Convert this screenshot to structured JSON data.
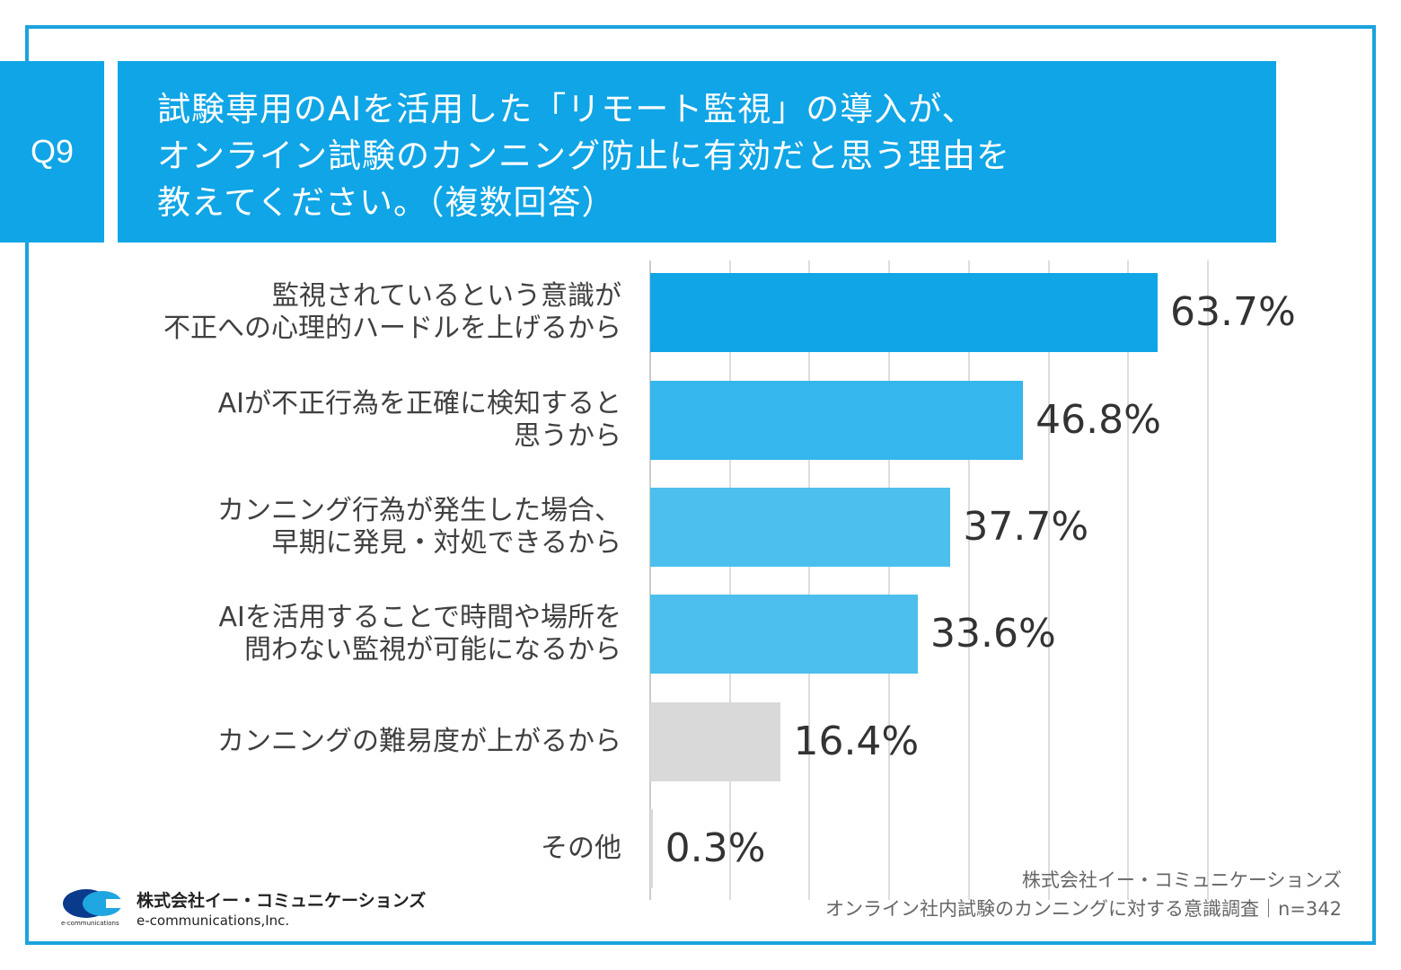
{
  "badge": "Q9",
  "question": {
    "lines": [
      "試験専用のAIを活用した「リモート監視」の導入が、",
      "オンライン試験のカンニング防止に有効だと思う理由を",
      "教えてください。（複数回答）"
    ]
  },
  "chart_data": {
    "type": "bar",
    "orientation": "horizontal",
    "title": "試験専用のAIを活用した「リモート監視」の導入が、オンライン試験のカンニング防止に有効だと思う理由を教えてください。（複数回答）",
    "xlim": [
      0,
      70
    ],
    "grid": true,
    "unit": "%",
    "categories": [
      [
        "監視されているという意識が",
        "不正への心理的ハードルを上げるから"
      ],
      [
        "AIが不正行為を正確に検知すると",
        "思うから"
      ],
      [
        "カンニング行為が発生した場合、",
        "早期に発見・対処できるから"
      ],
      [
        "AIを活用することで時間や場所を",
        "問わない監視が可能になるから"
      ],
      [
        "カンニングの難易度が上がるから"
      ],
      [
        "その他"
      ]
    ],
    "values": [
      63.7,
      46.8,
      37.7,
      33.6,
      16.4,
      0.3
    ],
    "value_labels": [
      "63.7%",
      "46.8%",
      "37.7%",
      "33.6%",
      "16.4%",
      "0.3%"
    ],
    "colors": [
      "#0fa5e6",
      "#35b6ec",
      "#4cbfec",
      "#4cbfec",
      "#d9d9d9",
      "#d9d9d9"
    ]
  },
  "credit": {
    "line1": "株式会社イー・コミュニケーションズ",
    "line2": "オンライン社内試験のカンニングに対する意識調査｜n=342"
  },
  "logo": {
    "name": "株式会社イー・コミュニケーションズ",
    "sub": "e-communications,Inc.",
    "mark_text": "e-communications"
  }
}
